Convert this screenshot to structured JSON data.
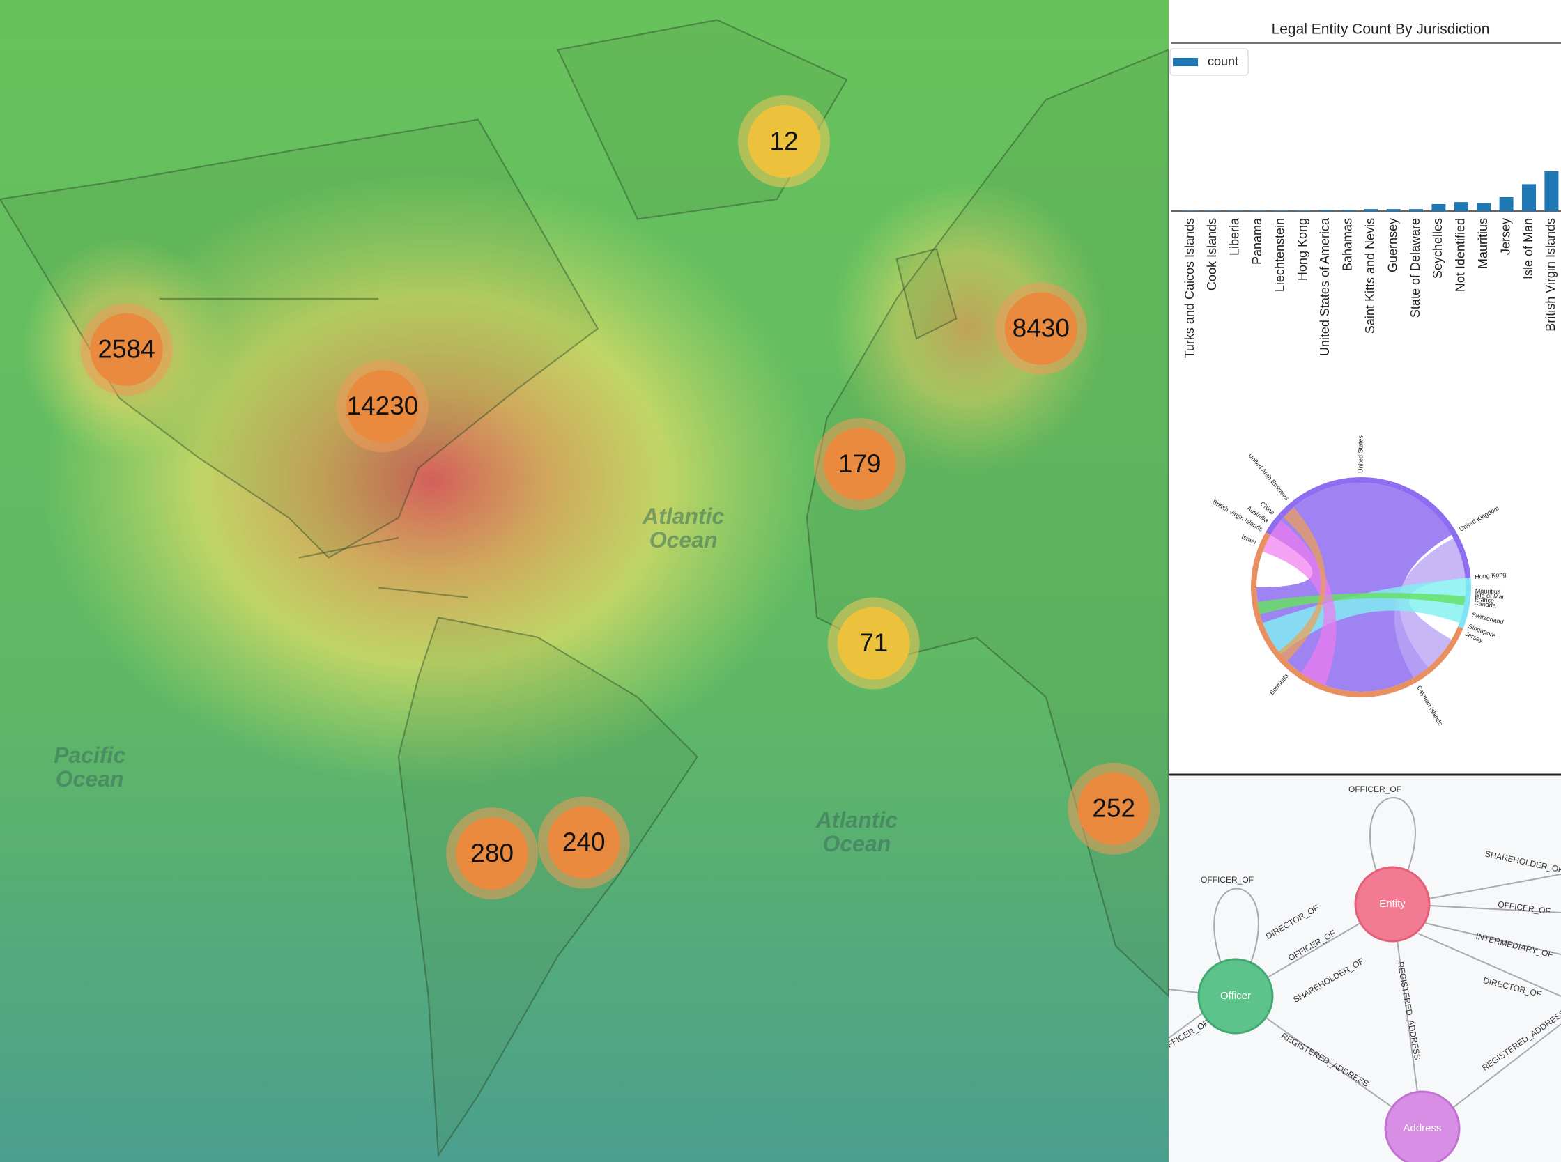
{
  "map": {
    "clusters": [
      12,
      2584,
      14230,
      8430,
      179,
      71,
      280,
      240,
      252
    ],
    "oceans": [
      {
        "lines": [
          "Atlantic",
          "Ocean"
        ]
      },
      {
        "lines": [
          "Atlantic",
          "Ocean"
        ]
      },
      {
        "lines": [
          "Pacific",
          "Ocean"
        ]
      }
    ]
  },
  "chart_data": {
    "type": "bar",
    "title": "Legal Entity Count By Jurisdiction",
    "legend": "count",
    "color": "#1f77b4",
    "categories": [
      "Turks and Caicos Islands",
      "Cook Islands",
      "Liberia",
      "Panama",
      "Liechtenstein",
      "Hong Kong",
      "United States of America",
      "Bahamas",
      "Saint Kitts and Nevis",
      "Guernsey",
      "State of Delaware",
      "Seychelles",
      "Not Identified",
      "Mauritius",
      "Jersey",
      "Isle of Man",
      "British Virgin Islands"
    ],
    "values": [
      0.5,
      0.5,
      0.5,
      0.5,
      0.5,
      0.5,
      1,
      1,
      2,
      2,
      2,
      7,
      9,
      8,
      14,
      27,
      40
    ]
  },
  "chord": {
    "labels": [
      "United States",
      "United Kingdom",
      "Hong Kong",
      "Mauritius",
      "Isle of Man",
      "France",
      "Canada",
      "Switzerland",
      "Singapore",
      "Jersey",
      "Cayman Islands",
      "Bermuda",
      "Israel",
      "British Virgin Islands",
      "Australia",
      "China",
      "United Arab Emirates"
    ]
  },
  "graph": {
    "nodes": [
      "Entity",
      "Officer",
      "Address"
    ],
    "edges": [
      "OFFICER_OF",
      "OFFICER_OF",
      "DIRECTOR_OF",
      "OFFICER_OF",
      "SHAREHOLDER_OF",
      "REGISTERED_ADDRESS",
      "REGISTERED_ADDRESS",
      "SHAREHOLDER_OF",
      "OFFICER_OF",
      "INTERMEDIARY_OF",
      "DIRECTOR_OF",
      "REGISTERED_ADDRESS",
      "OFFICER_OF"
    ]
  }
}
